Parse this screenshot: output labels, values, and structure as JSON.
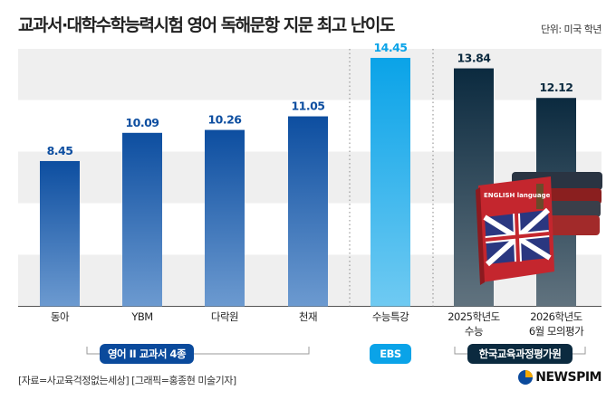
{
  "chart_data": {
    "type": "bar",
    "title": "교과서·대학수학능력시험 영어 독해문항 지문 최고 난이도",
    "unit": "단위: 미국 학년",
    "categories": [
      "동아",
      "YBM",
      "다락원",
      "천재",
      "수능특강",
      "2025학년도\n수능",
      "2026학년도\n6월 모의평가"
    ],
    "values": [
      8.45,
      10.09,
      10.26,
      11.05,
      14.45,
      13.84,
      12.12
    ],
    "value_labels": [
      "8.45",
      "10.09",
      "10.26",
      "11.05",
      "14.45",
      "13.84",
      "12.12"
    ],
    "groups": [
      {
        "label": "영어 II 교과서 4종",
        "members": [
          0,
          1,
          2,
          3
        ],
        "color": "#0a4a9c"
      },
      {
        "label": "EBS",
        "members": [
          4
        ],
        "color": "#0aa3e8"
      },
      {
        "label": "한국교육과정평가원",
        "members": [
          5,
          6
        ],
        "color": "#0b2a3f"
      }
    ],
    "ylim": [
      0,
      15
    ],
    "grid": "alternating bands every 3",
    "bar_colors": [
      "#0d4ea0",
      "#0d4ea0",
      "#0d4ea0",
      "#0d4ea0",
      "#0aa3e8",
      "#0b2a3f",
      "#0b2a3f"
    ]
  },
  "footer": {
    "source": "[자료=사교육걱정없는세상] [그래픽=홍종현 미술기자]",
    "logo": "NEWSPIM"
  },
  "illustration": {
    "book_text": "ENGLISH language"
  }
}
